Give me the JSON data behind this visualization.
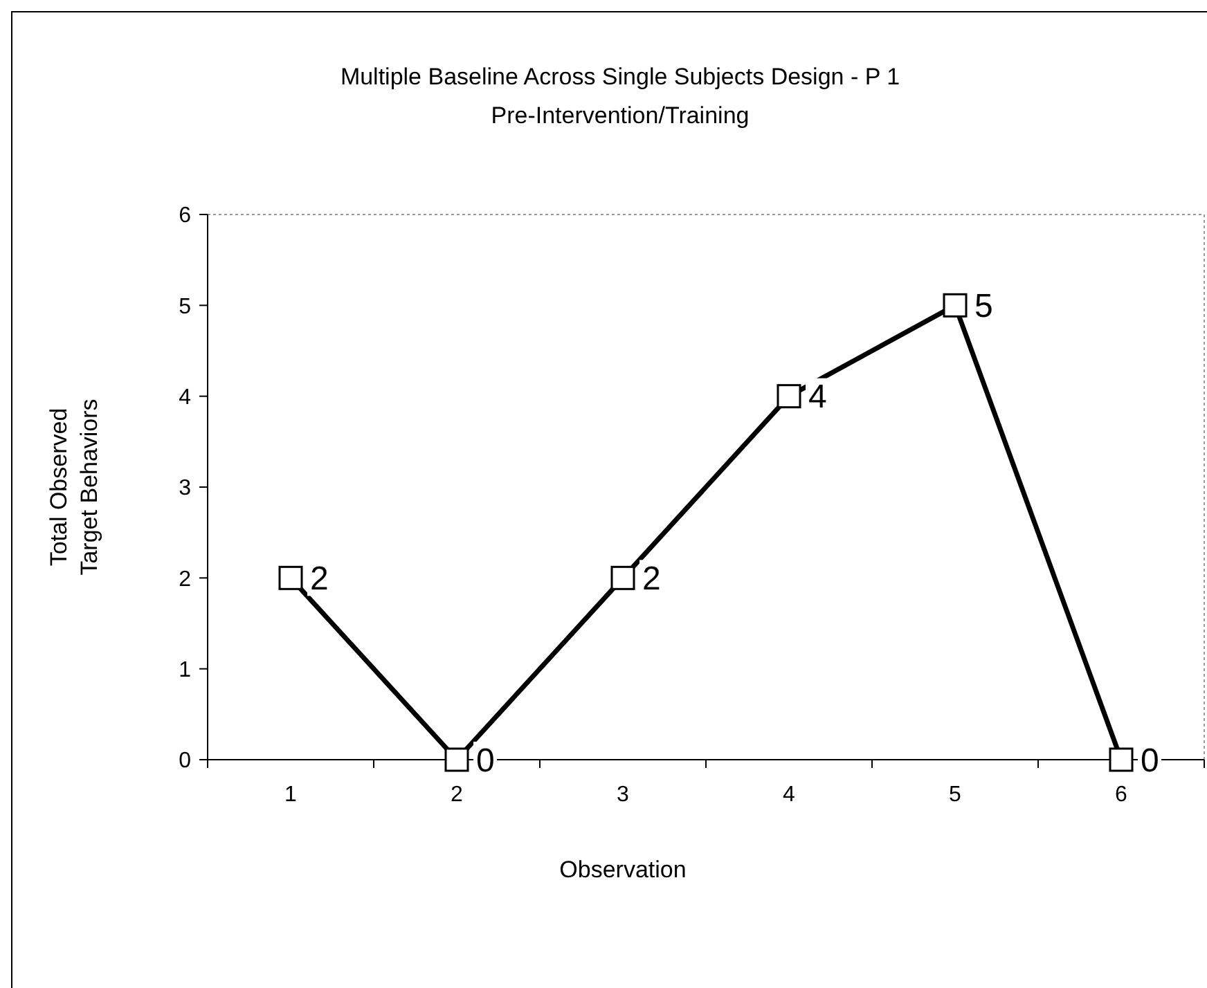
{
  "chart_data": {
    "type": "line",
    "title": "Multiple Baseline Across Single Subjects Design - P 1",
    "subtitle": "Pre-Intervention/Training",
    "xlabel": "Observation",
    "ylabel": "Total Observed\nTarget Behaviors",
    "categories": [
      "1",
      "2",
      "3",
      "4",
      "5",
      "6"
    ],
    "series": [
      {
        "color": "#000000",
        "values": [
          2,
          0,
          2,
          4,
          5,
          0
        ]
      }
    ],
    "ylim": [
      0,
      6
    ],
    "yticks": [
      0,
      1,
      2,
      3,
      4,
      5,
      6
    ],
    "grid": false,
    "marker": "square",
    "line_style": "solid",
    "data_labels": true
  }
}
